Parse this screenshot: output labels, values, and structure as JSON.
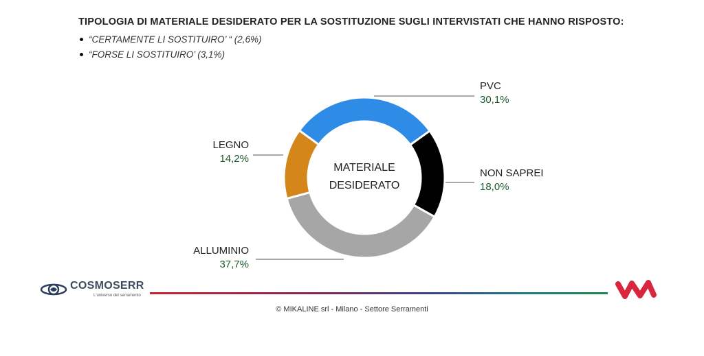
{
  "header": {
    "title": "TIPOLOGIA DI MATERIALE DESIDERATO PER LA SOSTITUZIONE SUGLI INTERVISTATI CHE HANNO RISPOSTO:",
    "bullets": [
      "“CERTAMENTE LI SOSTITUIRO’ “ (2,6%)",
      "“FORSE LI SOSTITUIRO’ (3,1%)"
    ]
  },
  "chart_data": {
    "type": "pie",
    "center_label": [
      "MATERIALE",
      "DESIDERATO"
    ],
    "slices": [
      {
        "label": "PVC",
        "value": 30.1,
        "display": "30,1%",
        "color": "#2e8be6"
      },
      {
        "label": "NON SAPREI",
        "value": 18.0,
        "display": "18,0%",
        "color": "#000000"
      },
      {
        "label": "ALLUMINIO",
        "value": 37.7,
        "display": "37,7%",
        "color": "#a6a6a6"
      },
      {
        "label": "LEGNO",
        "value": 14.2,
        "display": "14,2%",
        "color": "#d4861a"
      }
    ],
    "value_color": "#1f5a2a"
  },
  "logos": {
    "left_name": "COSMOSERR",
    "left_tagline": "L'universo del serramento"
  },
  "footer": {
    "text": "© MIKALINE srl -  Milano - Settore Serramenti"
  }
}
